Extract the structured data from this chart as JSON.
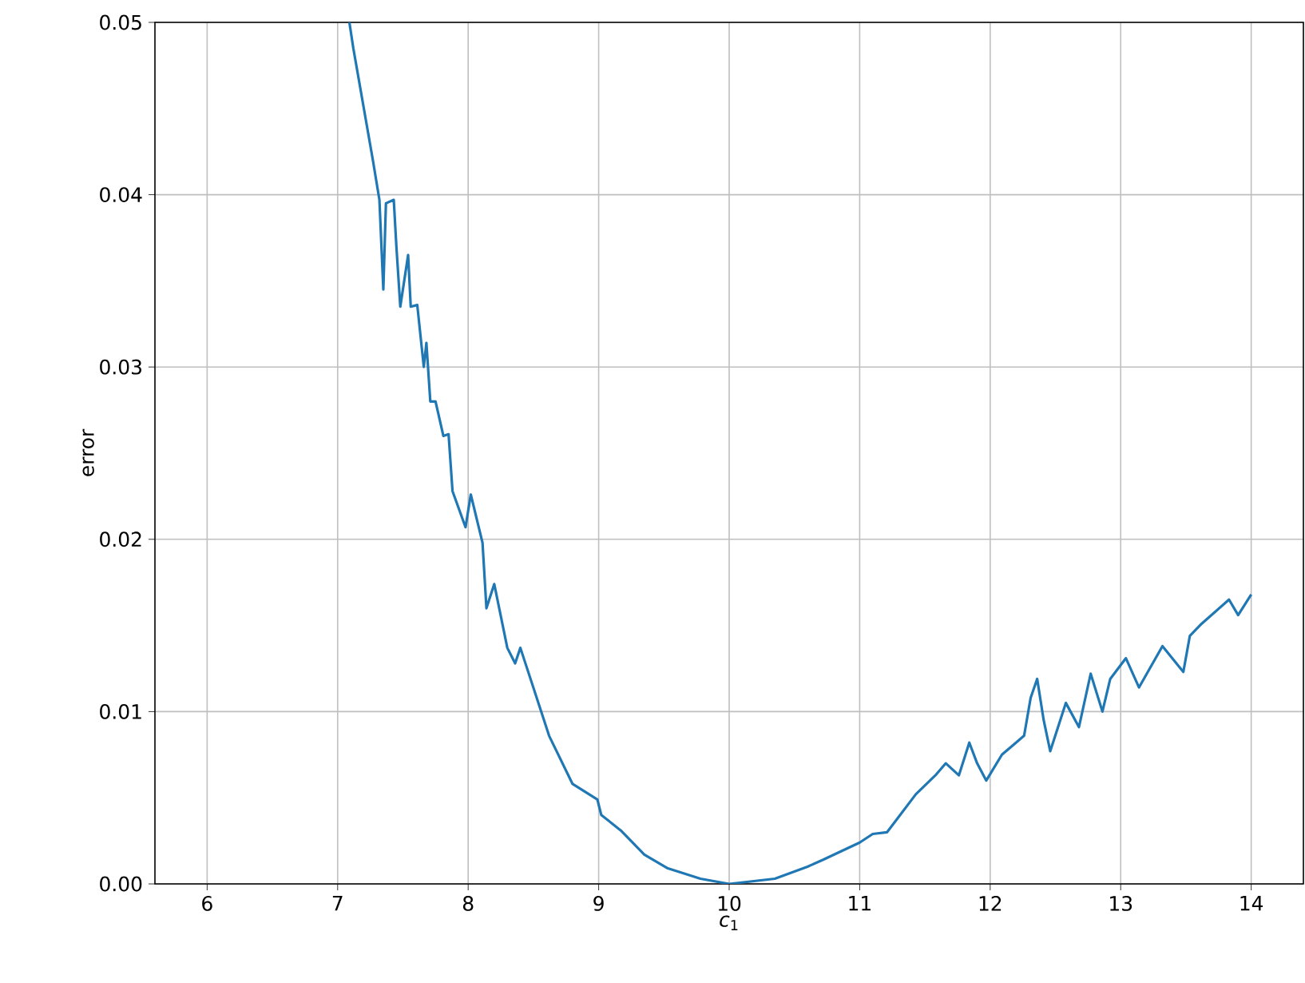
{
  "chart_data": {
    "type": "line",
    "xlabel": "*c*$_{1}$",
    "ylabel": "error",
    "xlim": [
      5.6,
      14.4
    ],
    "ylim": [
      0,
      0.05
    ],
    "xticks": [
      6,
      7,
      8,
      9,
      10,
      11,
      12,
      13,
      14
    ],
    "yticks": [
      {
        "value": 0,
        "label": "0.00"
      },
      0.01,
      0.02,
      0.03,
      0.04,
      0.05
    ],
    "grid": true,
    "marker": "none",
    "line_style": "solid",
    "series": [
      {
        "color": "#1f77b4",
        "x": [
          7.09,
          7.12,
          7.27,
          7.32,
          7.35,
          7.37,
          7.43,
          7.45,
          7.48,
          7.54,
          7.56,
          7.61,
          7.66,
          7.68,
          7.71,
          7.75,
          7.81,
          7.85,
          7.88,
          7.98,
          8.02,
          8.11,
          8.14,
          8.2,
          8.3,
          8.36,
          8.4,
          8.56,
          8.62,
          8.8,
          8.99,
          9.02,
          9.17,
          9.35,
          9.53,
          9.78,
          10.0,
          10.35,
          10.6,
          10.72,
          11.0,
          11.1,
          11.21,
          11.43,
          11.58,
          11.66,
          11.76,
          11.84,
          11.9,
          11.97,
          12.09,
          12.26,
          12.31,
          12.36,
          12.41,
          12.46,
          12.58,
          12.68,
          12.77,
          12.86,
          12.92,
          13.04,
          13.14,
          13.32,
          13.48,
          13.53,
          13.62,
          13.83,
          13.9,
          14.0
        ],
        "values": [
          0.05,
          0.0485,
          0.042,
          0.0397,
          0.0345,
          0.0395,
          0.0397,
          0.037,
          0.0335,
          0.0365,
          0.0335,
          0.0336,
          0.03,
          0.0314,
          0.028,
          0.028,
          0.026,
          0.0261,
          0.0228,
          0.0207,
          0.0226,
          0.0198,
          0.016,
          0.0174,
          0.0137,
          0.0128,
          0.0137,
          0.01,
          0.0086,
          0.0058,
          0.0049,
          0.004,
          0.0031,
          0.0017,
          0.0009,
          0.0003,
          0.0,
          0.0003,
          0.001,
          0.0014,
          0.0024,
          0.0029,
          0.003,
          0.0052,
          0.0063,
          0.007,
          0.0063,
          0.0082,
          0.007,
          0.006,
          0.0075,
          0.0086,
          0.0108,
          0.0119,
          0.0095,
          0.0077,
          0.0105,
          0.0091,
          0.0122,
          0.01,
          0.0119,
          0.0131,
          0.0114,
          0.0138,
          0.0123,
          0.0144,
          0.0151,
          0.0165,
          0.0156,
          0.0168
        ]
      }
    ]
  }
}
